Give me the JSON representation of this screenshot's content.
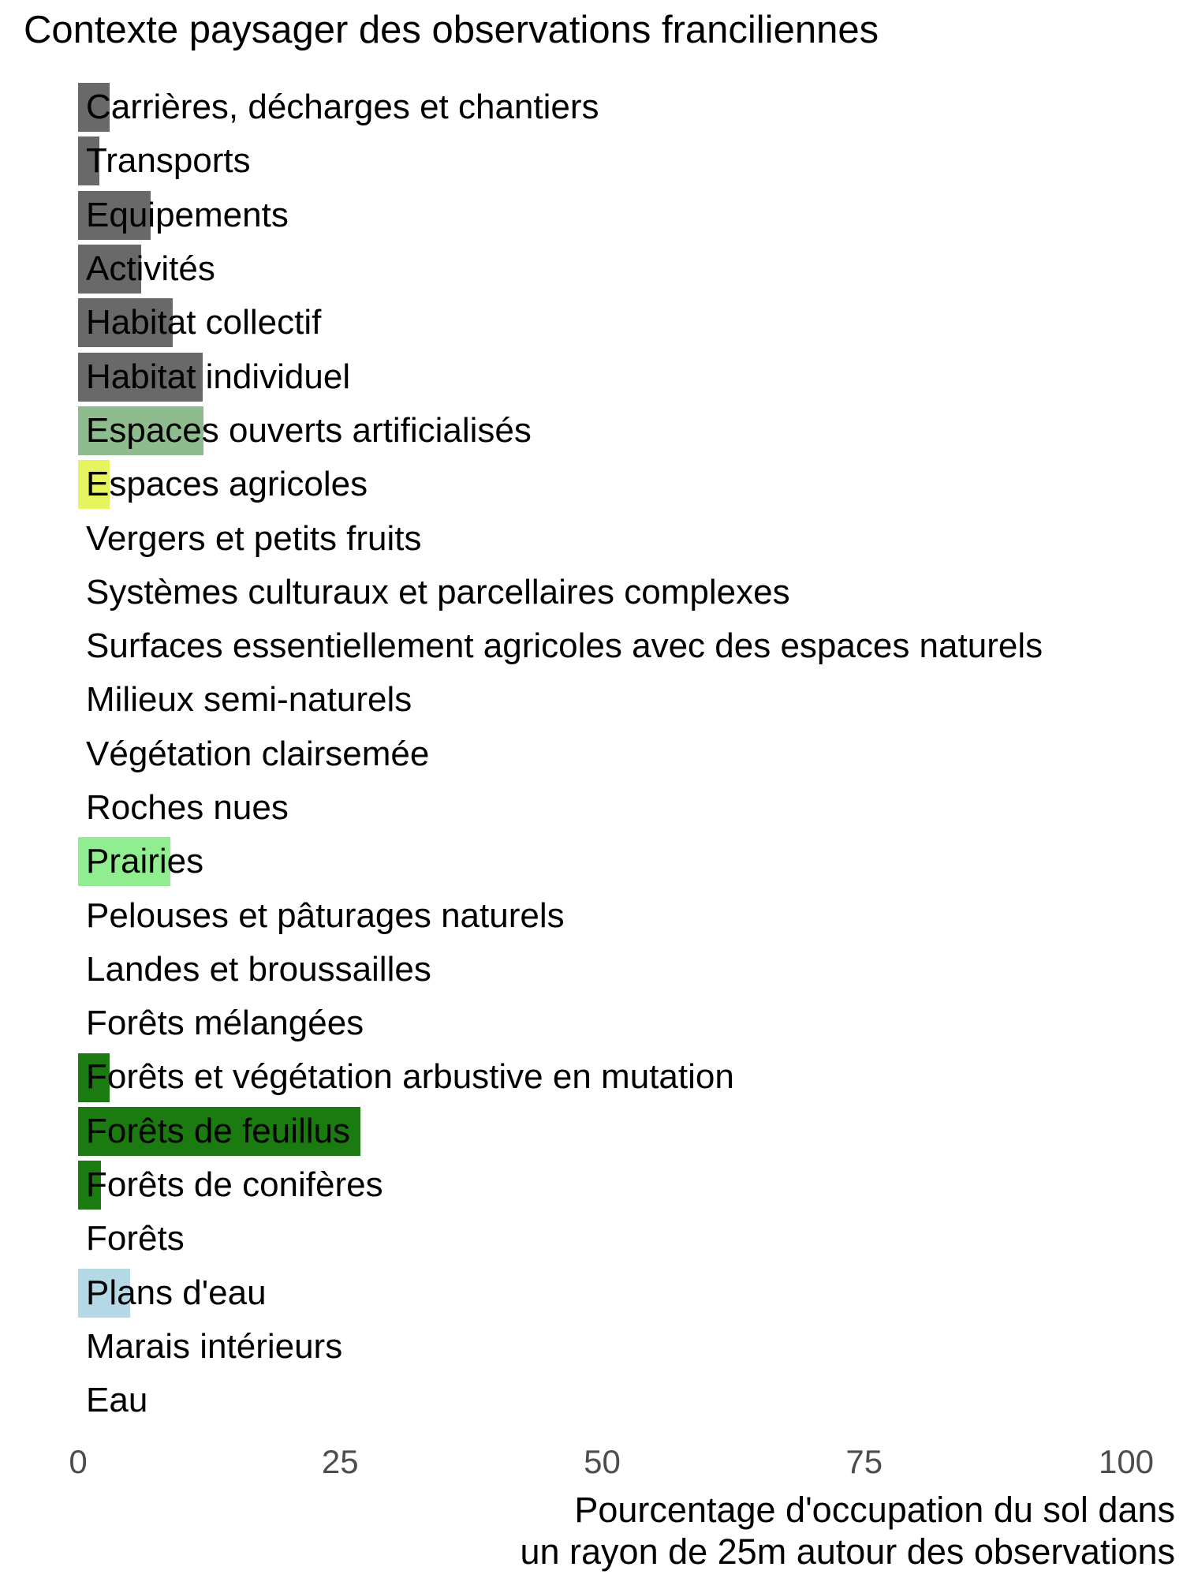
{
  "title": "Contexte paysager des observations franciliennes",
  "axis": {
    "caption_line1": "Pourcentage d'occupation du sol dans",
    "caption_line2": "un rayon de 25m autour des observations"
  },
  "colors": {
    "urban_gray": "#696969",
    "artificial_green": "#8FBC8F",
    "agricultural_yellow": "#E6F55E",
    "grassland_lightgreen": "#90EE90",
    "forest_darkgreen": "#1B7A10",
    "water_lightblue": "#B5D8E6",
    "tick_label_gray": "#4d4d4d",
    "text_black": "#000000",
    "background": "#ffffff"
  },
  "chart_data": {
    "type": "bar",
    "orientation": "horizontal",
    "title": "Contexte paysager des observations franciliennes",
    "xlabel": "Pourcentage d'occupation du sol dans un rayon de 25m autour des observations",
    "ylabel": "",
    "xlim": [
      0,
      100
    ],
    "x_ticks": [
      0,
      25,
      50,
      75,
      100
    ],
    "grid": false,
    "legend_position": "none",
    "categories": [
      "Carrières, décharges et chantiers",
      "Transports",
      "Equipements",
      "Activités",
      "Habitat collectif",
      "Habitat individuel",
      "Espaces ouverts artificialisés",
      "Espaces agricoles",
      "Vergers et petits fruits",
      "Systèmes culturaux et parcellaires complexes",
      "Surfaces essentiellement agricoles avec des espaces naturels",
      "Milieux semi-naturels",
      "Végétation clairsemée",
      "Roches nues",
      "Prairies",
      "Pelouses et pâturages naturels",
      "Landes et broussailles",
      "Forêts mélangées",
      "Forêts et végétation arbustive en mutation",
      "Forêts de feuillus",
      "Forêts de conifères",
      "Forêts",
      "Plans d'eau",
      "Marais intérieurs",
      "Eau"
    ],
    "values": [
      3.0,
      2.0,
      6.9,
      6.0,
      9.0,
      11.9,
      12.0,
      3.0,
      0,
      0,
      0,
      0,
      0,
      0,
      8.8,
      0,
      0,
      0,
      3.0,
      26.9,
      2.2,
      0,
      5.0,
      0,
      0
    ],
    "bar_colors": [
      "#696969",
      "#696969",
      "#696969",
      "#696969",
      "#696969",
      "#696969",
      "#8FBC8F",
      "#E6F55E",
      null,
      null,
      null,
      null,
      null,
      null,
      "#90EE90",
      null,
      null,
      null,
      "#1B7A10",
      "#1B7A10",
      "#1B7A10",
      null,
      "#B5D8E6",
      null,
      null
    ]
  }
}
